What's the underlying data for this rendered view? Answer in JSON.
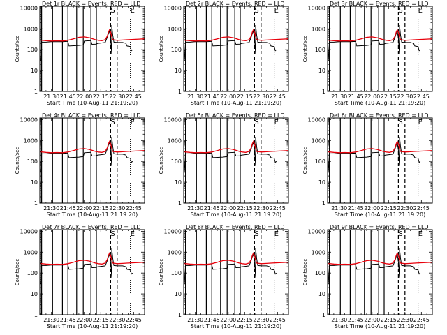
{
  "chart_data": {
    "type": "line",
    "ylabel": "Counts/sec",
    "yscale": "log",
    "ylim": [
      1,
      12000
    ],
    "xlim": [
      "21:19:20",
      "22:55:00"
    ],
    "yticks": [
      {
        "v": 1,
        "label": "1"
      },
      {
        "v": 10,
        "label": "10"
      },
      {
        "v": 100,
        "label": "100"
      },
      {
        "v": 1000,
        "label": "1000"
      },
      {
        "v": 10000,
        "label": "10000"
      }
    ],
    "xticks": [
      {
        "t": "21:30",
        "label": "21:30"
      },
      {
        "t": "21:45",
        "label": "21:45"
      },
      {
        "t": "22:00",
        "label": "22:00"
      },
      {
        "t": "22:15",
        "label": "22:15"
      },
      {
        "t": "22:30",
        "label": "22:30"
      },
      {
        "t": "22:45",
        "label": "22:45"
      }
    ],
    "solid_vlines": [
      "21:21",
      "21:31",
      "21:40",
      "21:45",
      "21:53",
      "21:59",
      "22:06",
      "22:11"
    ],
    "dashed_vlines": [
      "22:24",
      "22:30"
    ],
    "dotted_vlines": [
      "22:42"
    ],
    "markers": [
      {
        "t": "22:26",
        "label": "S"
      },
      {
        "t": "22:44",
        "label": "E"
      }
    ],
    "red_series": [
      [
        "21:19",
        290
      ],
      [
        "21:25",
        270
      ],
      [
        "21:30",
        260
      ],
      [
        "21:35",
        265
      ],
      [
        "21:40",
        260
      ],
      [
        "21:45",
        280
      ],
      [
        "21:50",
        330
      ],
      [
        "21:55",
        390
      ],
      [
        "22:00",
        410
      ],
      [
        "22:05",
        370
      ],
      [
        "22:10",
        300
      ],
      [
        "22:13",
        280
      ],
      [
        "22:16",
        270
      ],
      [
        "22:19",
        300
      ],
      [
        "22:21",
        450
      ],
      [
        "22:22",
        700
      ],
      [
        "22:23",
        900
      ],
      [
        "22:24",
        700
      ],
      [
        "22:25",
        400
      ],
      [
        "22:26",
        300
      ],
      [
        "22:30",
        280
      ],
      [
        "22:35",
        290
      ],
      [
        "22:40",
        300
      ],
      [
        "22:45",
        310
      ],
      [
        "22:50",
        320
      ],
      [
        "22:55",
        330
      ]
    ],
    "black_series": [
      [
        "21:20",
        30
      ],
      [
        "21:21",
        230
      ],
      [
        "21:25",
        230
      ],
      [
        "21:30",
        240
      ],
      [
        "21:35",
        240
      ],
      [
        "21:40",
        240
      ],
      [
        "21:45",
        250
      ],
      [
        "21:46",
        150
      ],
      [
        "21:55",
        160
      ],
      [
        "21:59",
        170
      ],
      [
        "22:00",
        260
      ],
      [
        "22:06",
        270
      ],
      [
        "22:07",
        180
      ],
      [
        "22:11",
        185
      ],
      [
        "22:12",
        200
      ],
      [
        "22:16",
        210
      ],
      [
        "22:19",
        220
      ],
      [
        "22:21",
        400
      ],
      [
        "22:22",
        600
      ],
      [
        "22:23",
        800
      ],
      [
        "22:24",
        350
      ],
      [
        "22:25",
        60
      ],
      [
        "22:25",
        1500
      ],
      [
        "22:26",
        500
      ],
      [
        "22:27",
        230
      ],
      [
        "22:30",
        220
      ],
      [
        "22:35",
        220
      ],
      [
        "22:38",
        200
      ],
      [
        "22:39",
        150
      ],
      [
        "22:42",
        140
      ],
      [
        "22:43",
        90
      ],
      [
        "22:44",
        100
      ]
    ],
    "panels": [
      {
        "title": "Det 1r BLACK = Events, RED = LLD",
        "xlabel": "Start Time (10-Aug-11 21:19:20)"
      },
      {
        "title": "Det 2r BLACK = Events, RED = LLD",
        "xlabel": "Start Time (10-Aug-11 21:19:20)"
      },
      {
        "title": "Det 3r BLACK = Events, RED = LLD",
        "xlabel": "Start Time (10-Aug-11 21:19:20)"
      },
      {
        "title": "Det 4r BLACK = Events, RED = LLD",
        "xlabel": "Start Time (10-Aug-11 21:19:20)"
      },
      {
        "title": "Det 5r BLACK = Events, RED = LLD",
        "xlabel": "Start Time (10-Aug-11 21:19:20)"
      },
      {
        "title": "Det 6r BLACK = Events, RED = LLD",
        "xlabel": "Start Time (10-Aug-11 21:19:20)"
      },
      {
        "title": "Det 7r BLACK = Events, RED = LLD",
        "xlabel": "Start Time (10-Aug-11 21:19:20)"
      },
      {
        "title": "Det 8r BLACK = Events, RED = LLD",
        "xlabel": "Start Time (10-Aug-11 21:19:20)"
      },
      {
        "title": "Det 9r BLACK = Events, RED = LLD",
        "xlabel": "Start Time (10-Aug-11 21:19:20)"
      }
    ]
  }
}
